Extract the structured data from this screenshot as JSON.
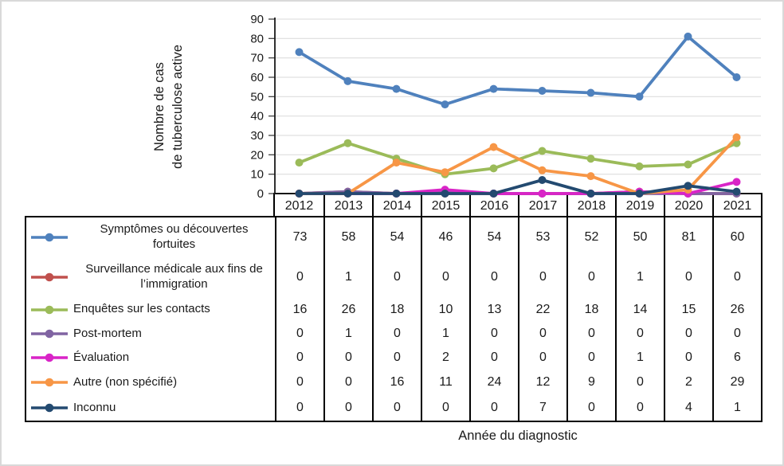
{
  "chart_data": {
    "type": "line",
    "title": "",
    "xlabel": "Année du diagnostic",
    "ylabel": "Nombre de cas de tuberculose active",
    "ylabel_lines": [
      "Nombre de cas",
      "de tuberculose active"
    ],
    "categories": [
      "2012",
      "2013",
      "2014",
      "2015",
      "2016",
      "2017",
      "2018",
      "2019",
      "2020",
      "2021"
    ],
    "ylim": [
      0,
      90
    ],
    "yticks": [
      0,
      10,
      20,
      30,
      40,
      50,
      60,
      70,
      80,
      90
    ],
    "grid": true,
    "legend_position": "table-left-column",
    "gridline_color": "#d9d9d9",
    "axis_color": "#1a1a1a",
    "table_border_color": "#000000",
    "series": [
      {
        "name": "Symptômes ou découvertes fortuites",
        "label_lines": [
          "Symptômes ou découvertes",
          "fortuites"
        ],
        "color": "#4F81BD",
        "values": [
          73,
          58,
          54,
          46,
          54,
          53,
          52,
          50,
          81,
          60
        ]
      },
      {
        "name": "Surveillance médicale aux fins de l’immigration",
        "label_lines": [
          "Surveillance médicale aux fins de",
          "l’immigration"
        ],
        "color": "#C0504D",
        "values": [
          0,
          1,
          0,
          0,
          0,
          0,
          0,
          1,
          0,
          0
        ]
      },
      {
        "name": "Enquêtes sur les contacts",
        "label_lines": [
          "Enquêtes sur les contacts"
        ],
        "color": "#9BBB59",
        "values": [
          16,
          26,
          18,
          10,
          13,
          22,
          18,
          14,
          15,
          26
        ]
      },
      {
        "name": "Post-mortem",
        "label_lines": [
          "Post-mortem"
        ],
        "color": "#8064A2",
        "values": [
          0,
          1,
          0,
          1,
          0,
          0,
          0,
          0,
          0,
          0
        ]
      },
      {
        "name": "Évaluation",
        "label_lines": [
          "Évaluation"
        ],
        "color": "#D924C7",
        "values": [
          0,
          0,
          0,
          2,
          0,
          0,
          0,
          1,
          0,
          6
        ]
      },
      {
        "name": "Autre (non spécifié)",
        "label_lines": [
          "Autre (non spécifié)"
        ],
        "color": "#F79646",
        "values": [
          0,
          0,
          16,
          11,
          24,
          12,
          9,
          0,
          2,
          29
        ]
      },
      {
        "name": "Inconnu",
        "label_lines": [
          "Inconnu"
        ],
        "color": "#234A70",
        "values": [
          0,
          0,
          0,
          0,
          0,
          7,
          0,
          0,
          4,
          1
        ]
      }
    ]
  }
}
